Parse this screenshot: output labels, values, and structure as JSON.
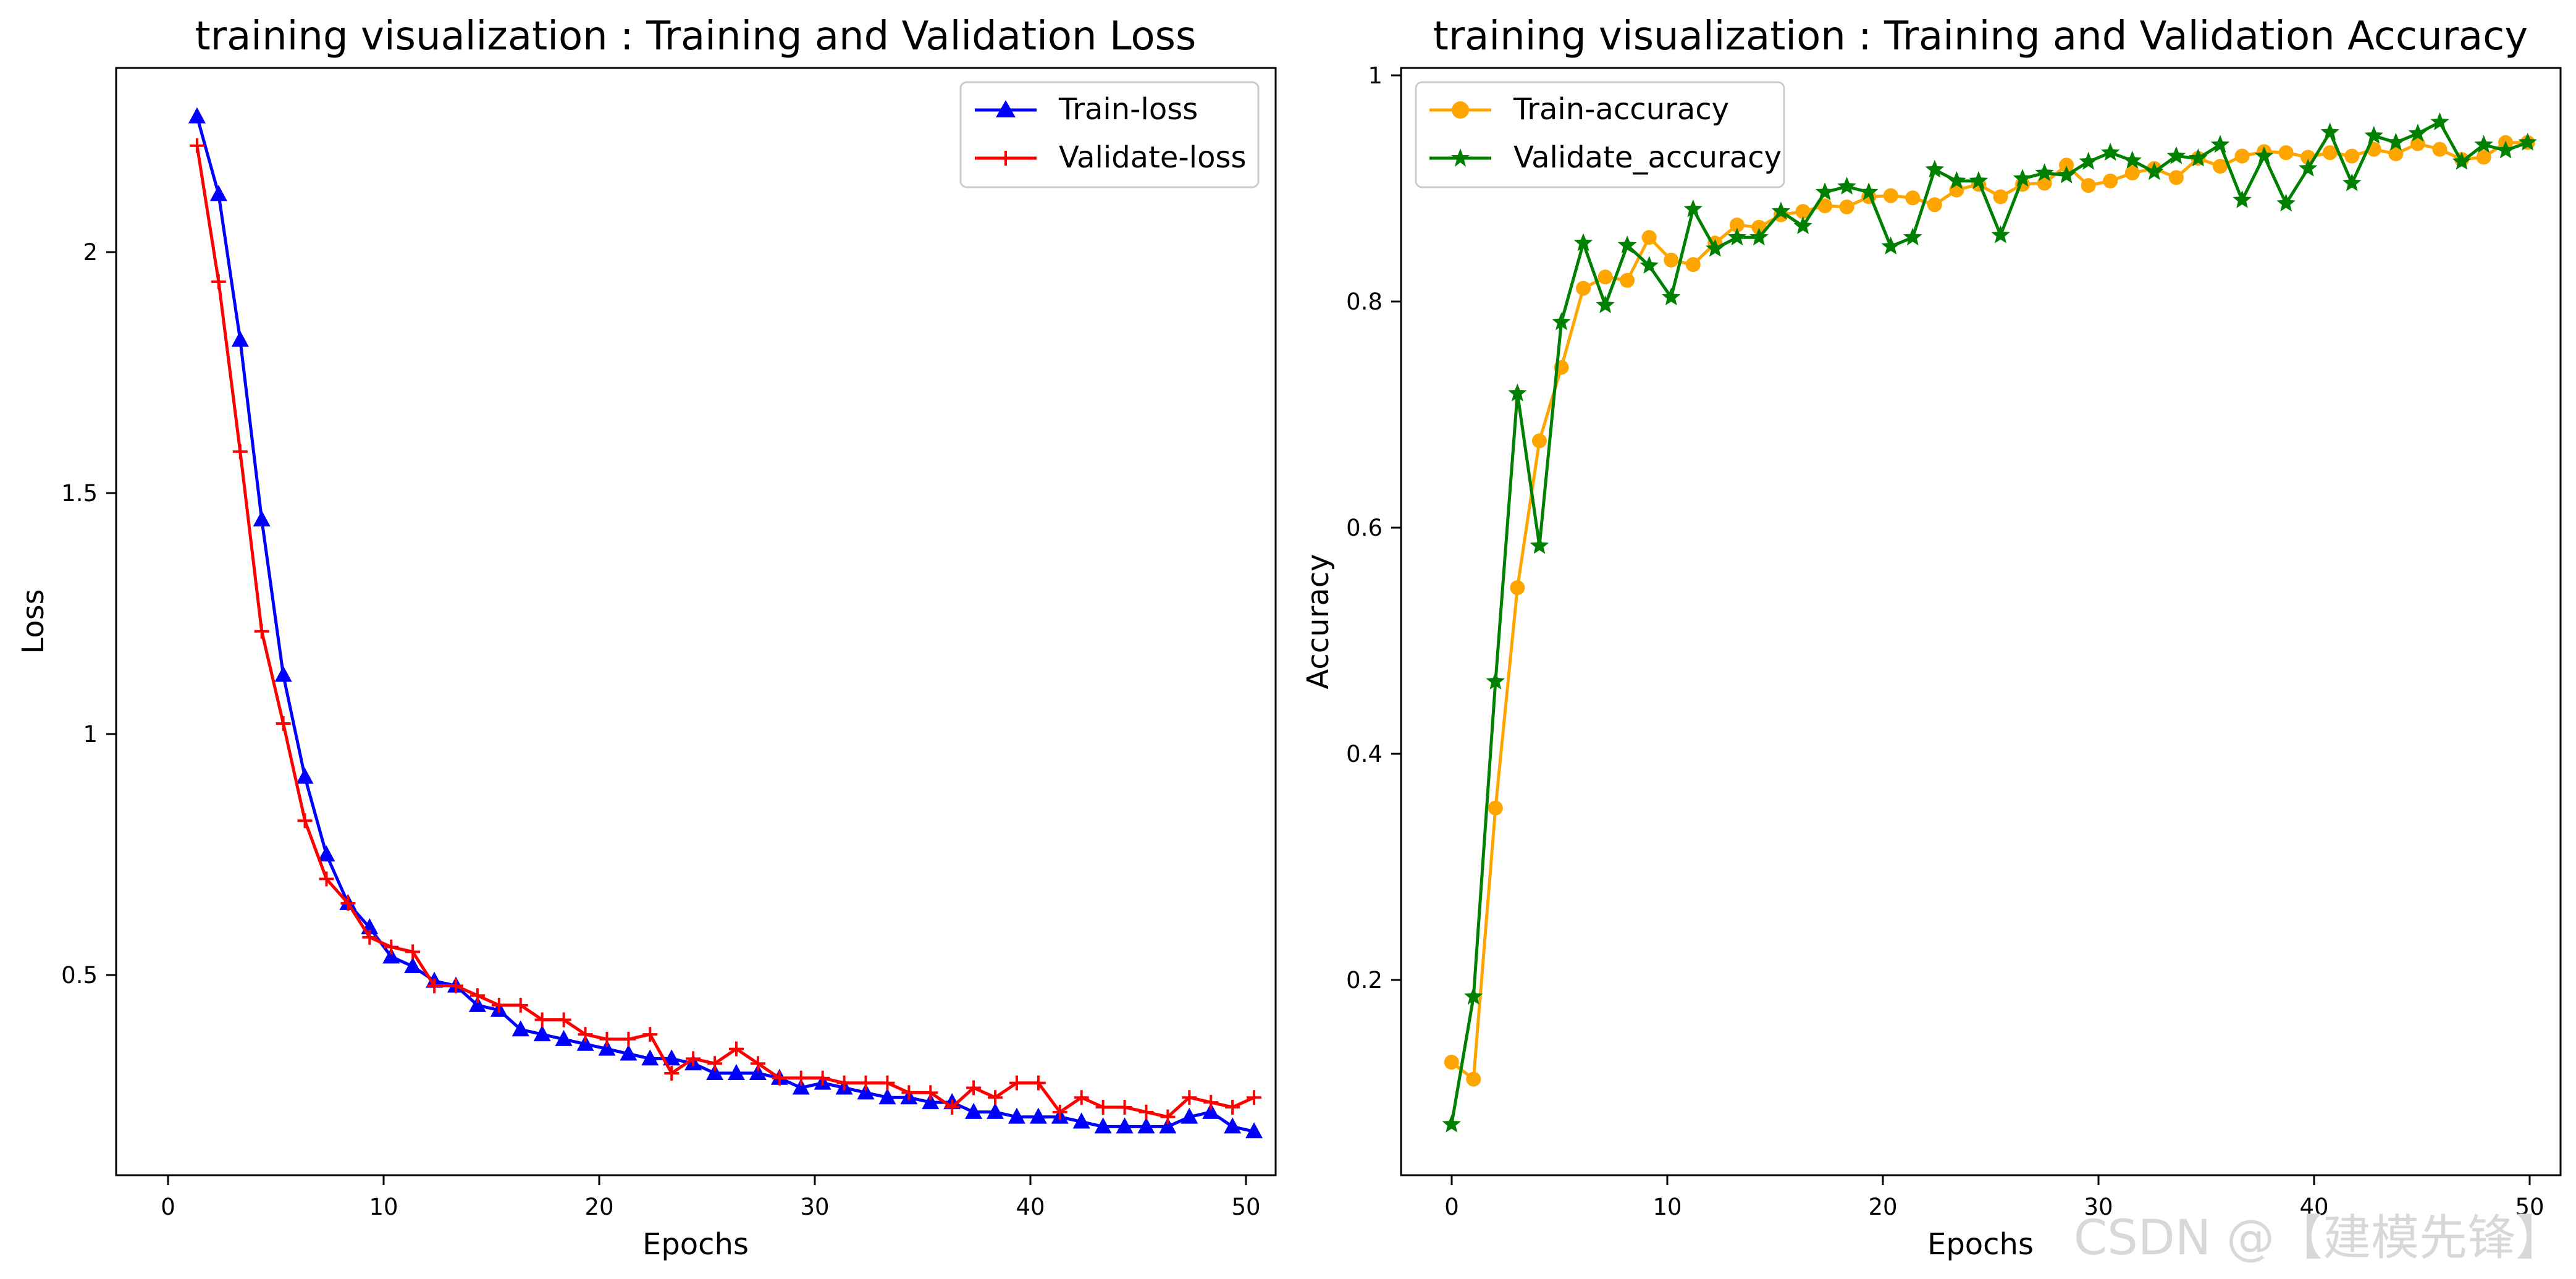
{
  "watermark": "CSDN @【建模先锋】",
  "chart_data": [
    {
      "type": "line",
      "title": "training visualization : Training and Validation Loss",
      "xlabel": "Epochs",
      "ylabel": "Loss",
      "xlim": [
        -3.75,
        50.0
      ],
      "ylim": [
        0.1,
        2.38
      ],
      "xticks": [
        0,
        10,
        20,
        30,
        40,
        50
      ],
      "yticks": [
        0.5,
        1.0,
        1.5,
        2.0
      ],
      "legend_position": "top-right",
      "x": [
        0,
        1,
        2,
        3,
        4,
        5,
        6,
        7,
        8,
        9,
        10,
        11,
        12,
        13,
        14,
        15,
        16,
        17,
        18,
        19,
        20,
        21,
        22,
        23,
        24,
        25,
        26,
        27,
        28,
        29,
        30,
        31,
        32,
        33,
        34,
        35,
        36,
        37,
        38,
        39,
        40,
        41,
        42,
        43,
        44,
        45,
        46,
        47,
        48,
        49
      ],
      "series": [
        {
          "name": "Train-loss",
          "color": "#0000ff",
          "marker": "triangle",
          "values": [
            2.28,
            2.12,
            1.82,
            1.45,
            1.13,
            0.92,
            0.76,
            0.66,
            0.61,
            0.55,
            0.53,
            0.5,
            0.49,
            0.45,
            0.44,
            0.4,
            0.39,
            0.38,
            0.37,
            0.36,
            0.35,
            0.34,
            0.34,
            0.33,
            0.31,
            0.31,
            0.31,
            0.3,
            0.28,
            0.29,
            0.28,
            0.27,
            0.26,
            0.26,
            0.25,
            0.25,
            0.23,
            0.23,
            0.22,
            0.22,
            0.22,
            0.21,
            0.2,
            0.2,
            0.2,
            0.2,
            0.22,
            0.23,
            0.2,
            0.19
          ]
        },
        {
          "name": "Validate-loss",
          "color": "#ff0000",
          "marker": "plus",
          "values": [
            2.22,
            1.94,
            1.59,
            1.22,
            1.03,
            0.83,
            0.71,
            0.66,
            0.59,
            0.57,
            0.56,
            0.49,
            0.49,
            0.47,
            0.45,
            0.45,
            0.42,
            0.42,
            0.39,
            0.38,
            0.38,
            0.39,
            0.31,
            0.34,
            0.33,
            0.36,
            0.33,
            0.3,
            0.3,
            0.3,
            0.29,
            0.29,
            0.29,
            0.27,
            0.27,
            0.24,
            0.28,
            0.26,
            0.29,
            0.29,
            0.23,
            0.26,
            0.24,
            0.24,
            0.23,
            0.22,
            0.26,
            0.25,
            0.24,
            0.26
          ]
        }
      ]
    },
    {
      "type": "line",
      "title": "training visualization : Training and Validation Accuracy",
      "xlabel": "Epochs",
      "ylabel": "Accuracy",
      "xlim": [
        -2.3,
        50.5
      ],
      "ylim": [
        0.03,
        1.01
      ],
      "xticks": [
        0,
        10,
        20,
        30,
        40,
        50
      ],
      "yticks": [
        0.2,
        0.4,
        0.6,
        0.8,
        1.0
      ],
      "legend_position": "top-left",
      "x": [
        0,
        1,
        2,
        3,
        4,
        5,
        6,
        7,
        8,
        9,
        10,
        11,
        12,
        13,
        14,
        15,
        16,
        17,
        18,
        19,
        20,
        21,
        22,
        23,
        24,
        25,
        26,
        27,
        28,
        29,
        30,
        31,
        32,
        33,
        34,
        35,
        36,
        37,
        38,
        39,
        40,
        41,
        42,
        43,
        44,
        45,
        46,
        47,
        48,
        49
      ],
      "series": [
        {
          "name": "Train-accuracy",
          "color": "#ffa500",
          "marker": "circle",
          "values": [
            0.13,
            0.115,
            0.355,
            0.55,
            0.68,
            0.745,
            0.815,
            0.825,
            0.822,
            0.86,
            0.84,
            0.836,
            0.855,
            0.871,
            0.869,
            0.88,
            0.883,
            0.888,
            0.887,
            0.896,
            0.897,
            0.895,
            0.889,
            0.902,
            0.907,
            0.896,
            0.907,
            0.908,
            0.924,
            0.906,
            0.91,
            0.917,
            0.921,
            0.913,
            0.93,
            0.923,
            0.932,
            0.936,
            0.935,
            0.931,
            0.935,
            0.932,
            0.938,
            0.934,
            0.943,
            0.938,
            0.929,
            0.931,
            0.944,
            0.944
          ]
        },
        {
          "name": "Validate_accuracy",
          "color": "#008000",
          "marker": "star",
          "values": [
            0.075,
            0.188,
            0.467,
            0.722,
            0.587,
            0.785,
            0.855,
            0.8,
            0.853,
            0.835,
            0.807,
            0.885,
            0.85,
            0.86,
            0.86,
            0.883,
            0.87,
            0.9,
            0.905,
            0.9,
            0.852,
            0.86,
            0.92,
            0.91,
            0.91,
            0.862,
            0.912,
            0.917,
            0.915,
            0.927,
            0.935,
            0.928,
            0.918,
            0.932,
            0.93,
            0.942,
            0.893,
            0.932,
            0.89,
            0.921,
            0.953,
            0.908,
            0.95,
            0.944,
            0.952,
            0.962,
            0.927,
            0.942,
            0.937,
            0.944
          ]
        }
      ]
    }
  ]
}
